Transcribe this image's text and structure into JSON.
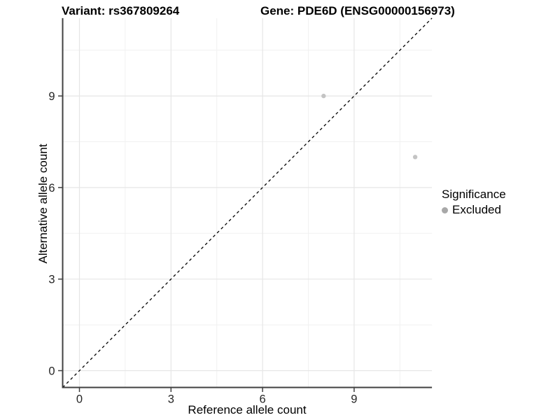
{
  "titles": {
    "left": "Variant: rs367809264",
    "right": "Gene: PDE6D (ENSG00000156973)"
  },
  "chart_data": {
    "type": "scatter",
    "xlabel": "Reference allele count",
    "ylabel": "Alternative allele count",
    "xlim": [
      -0.55,
      11.55
    ],
    "ylim": [
      -0.55,
      11.55
    ],
    "x_ticks": [
      0,
      3,
      6,
      9
    ],
    "y_ticks": [
      0,
      3,
      6,
      9
    ],
    "x_minor_breaks": [
      1.5,
      4.5,
      7.5,
      10.5
    ],
    "y_minor_breaks": [
      1.5,
      4.5,
      7.5,
      10.5
    ],
    "grid": true,
    "identity_line": {
      "style": "dashed",
      "color": "#000000",
      "from": [
        -0.55,
        -0.55
      ],
      "to": [
        11.55,
        11.55
      ]
    },
    "series": [
      {
        "name": "Excluded",
        "color": "#c4c4c4",
        "points": [
          {
            "x": 8,
            "y": 9
          },
          {
            "x": 11,
            "y": 7
          }
        ]
      }
    ],
    "legend": {
      "title": "Significance",
      "position": "right",
      "items": [
        {
          "label": "Excluded",
          "color": "#a8a8a8"
        }
      ]
    },
    "colors": {
      "grid_major": "#e6e6e6",
      "grid_minor": "#f1f1f1",
      "axis_line": "#404040",
      "tick_label": "#262626"
    }
  }
}
